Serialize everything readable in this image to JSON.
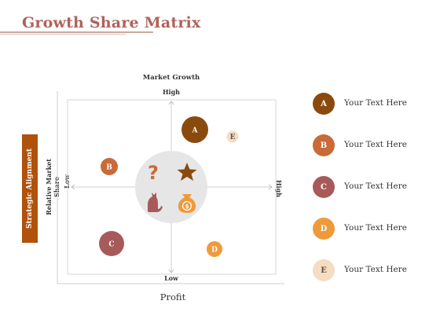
{
  "title": "Growth Share Matrix",
  "matrix": {
    "top_axis_label": "Market Growth",
    "top_tick": "High",
    "bottom_tick": "Low",
    "left_tick": "Low",
    "right_tick": "High",
    "left_axis_label": "Relative Market Share",
    "side_banner": "Strategic Alignment",
    "bottom_axis_label": "Profit"
  },
  "bubbles": [
    {
      "label": "A",
      "color": "#8a4a0e"
    },
    {
      "label": "B",
      "color": "#c96a38"
    },
    {
      "label": "C",
      "color": "#a85a5a"
    },
    {
      "label": "D",
      "color": "#ef9a3a"
    },
    {
      "label": "E",
      "color": "#f6dcc0"
    }
  ],
  "center_icons": [
    "question-mark-icon",
    "star-icon",
    "dog-icon",
    "money-bag-icon"
  ],
  "legend": [
    {
      "letter": "A",
      "text": "Your Text Here",
      "color": "#8a4a0e"
    },
    {
      "letter": "B",
      "text": "Your Text Here",
      "color": "#c96a38"
    },
    {
      "letter": "C",
      "text": "Your Text Here",
      "color": "#a85a5a"
    },
    {
      "letter": "D",
      "text": "Your Text Here",
      "color": "#ef9a3a"
    },
    {
      "letter": "E",
      "text": "Your Text Here",
      "color": "#f6dcc0"
    }
  ]
}
